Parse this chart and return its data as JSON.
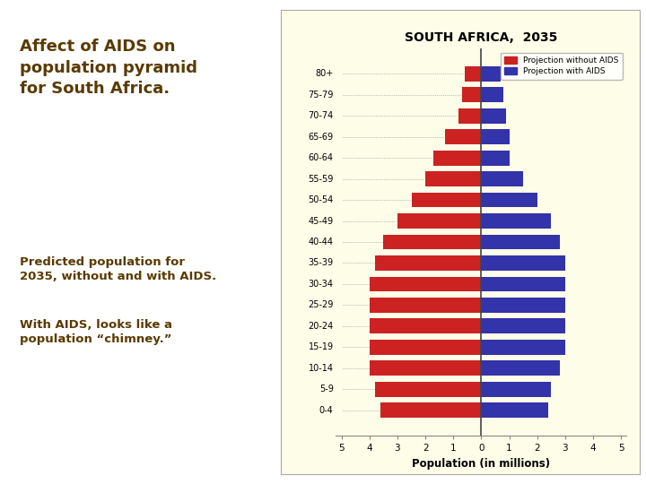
{
  "title": "SOUTH AFRICA,  2035",
  "age_groups": [
    "0-4",
    "5-9",
    "10-14",
    "15-19",
    "20-24",
    "25-29",
    "30-34",
    "35-39",
    "40-44",
    "45-49",
    "50-54",
    "55-59",
    "60-64",
    "65-69",
    "70-74",
    "75-79",
    "80+"
  ],
  "without_aids": [
    3.6,
    3.8,
    4.0,
    4.0,
    4.0,
    4.0,
    4.0,
    3.8,
    3.5,
    3.0,
    2.5,
    2.0,
    1.7,
    1.3,
    0.8,
    0.7,
    0.6
  ],
  "with_aids": [
    2.4,
    2.5,
    2.8,
    3.0,
    3.0,
    3.0,
    3.0,
    3.0,
    2.8,
    2.5,
    2.0,
    1.5,
    1.0,
    1.0,
    0.9,
    0.8,
    0.7
  ],
  "color_without": "#cc2222",
  "color_with": "#3333aa",
  "xlabel": "Population (in millions)",
  "xlim": 5.2,
  "legend_without": "Projection without AIDS",
  "legend_with": "Projection with AIDS",
  "bg_color": "#fdfde8",
  "left_text_color": "#5a3a00",
  "left_title": "Affect of AIDS on\npopulation pyramid\nfor South Africa.",
  "left_body1": "Predicted population for\n2035, without and with AIDS.",
  "left_body2": "With AIDS, looks like a\npopulation “chimney.”"
}
